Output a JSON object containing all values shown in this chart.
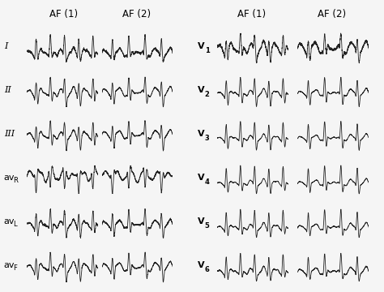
{
  "left_leads": [
    "I",
    "II",
    "III",
    "avR",
    "avL",
    "avF"
  ],
  "right_leads": [
    "V1",
    "V2",
    "V3",
    "V4",
    "V5",
    "V6"
  ],
  "background_color": "#f5f5f5",
  "line_color": "#222222",
  "line_width": 0.6,
  "label_fontsize": 8,
  "header_fontsize": 8.5
}
